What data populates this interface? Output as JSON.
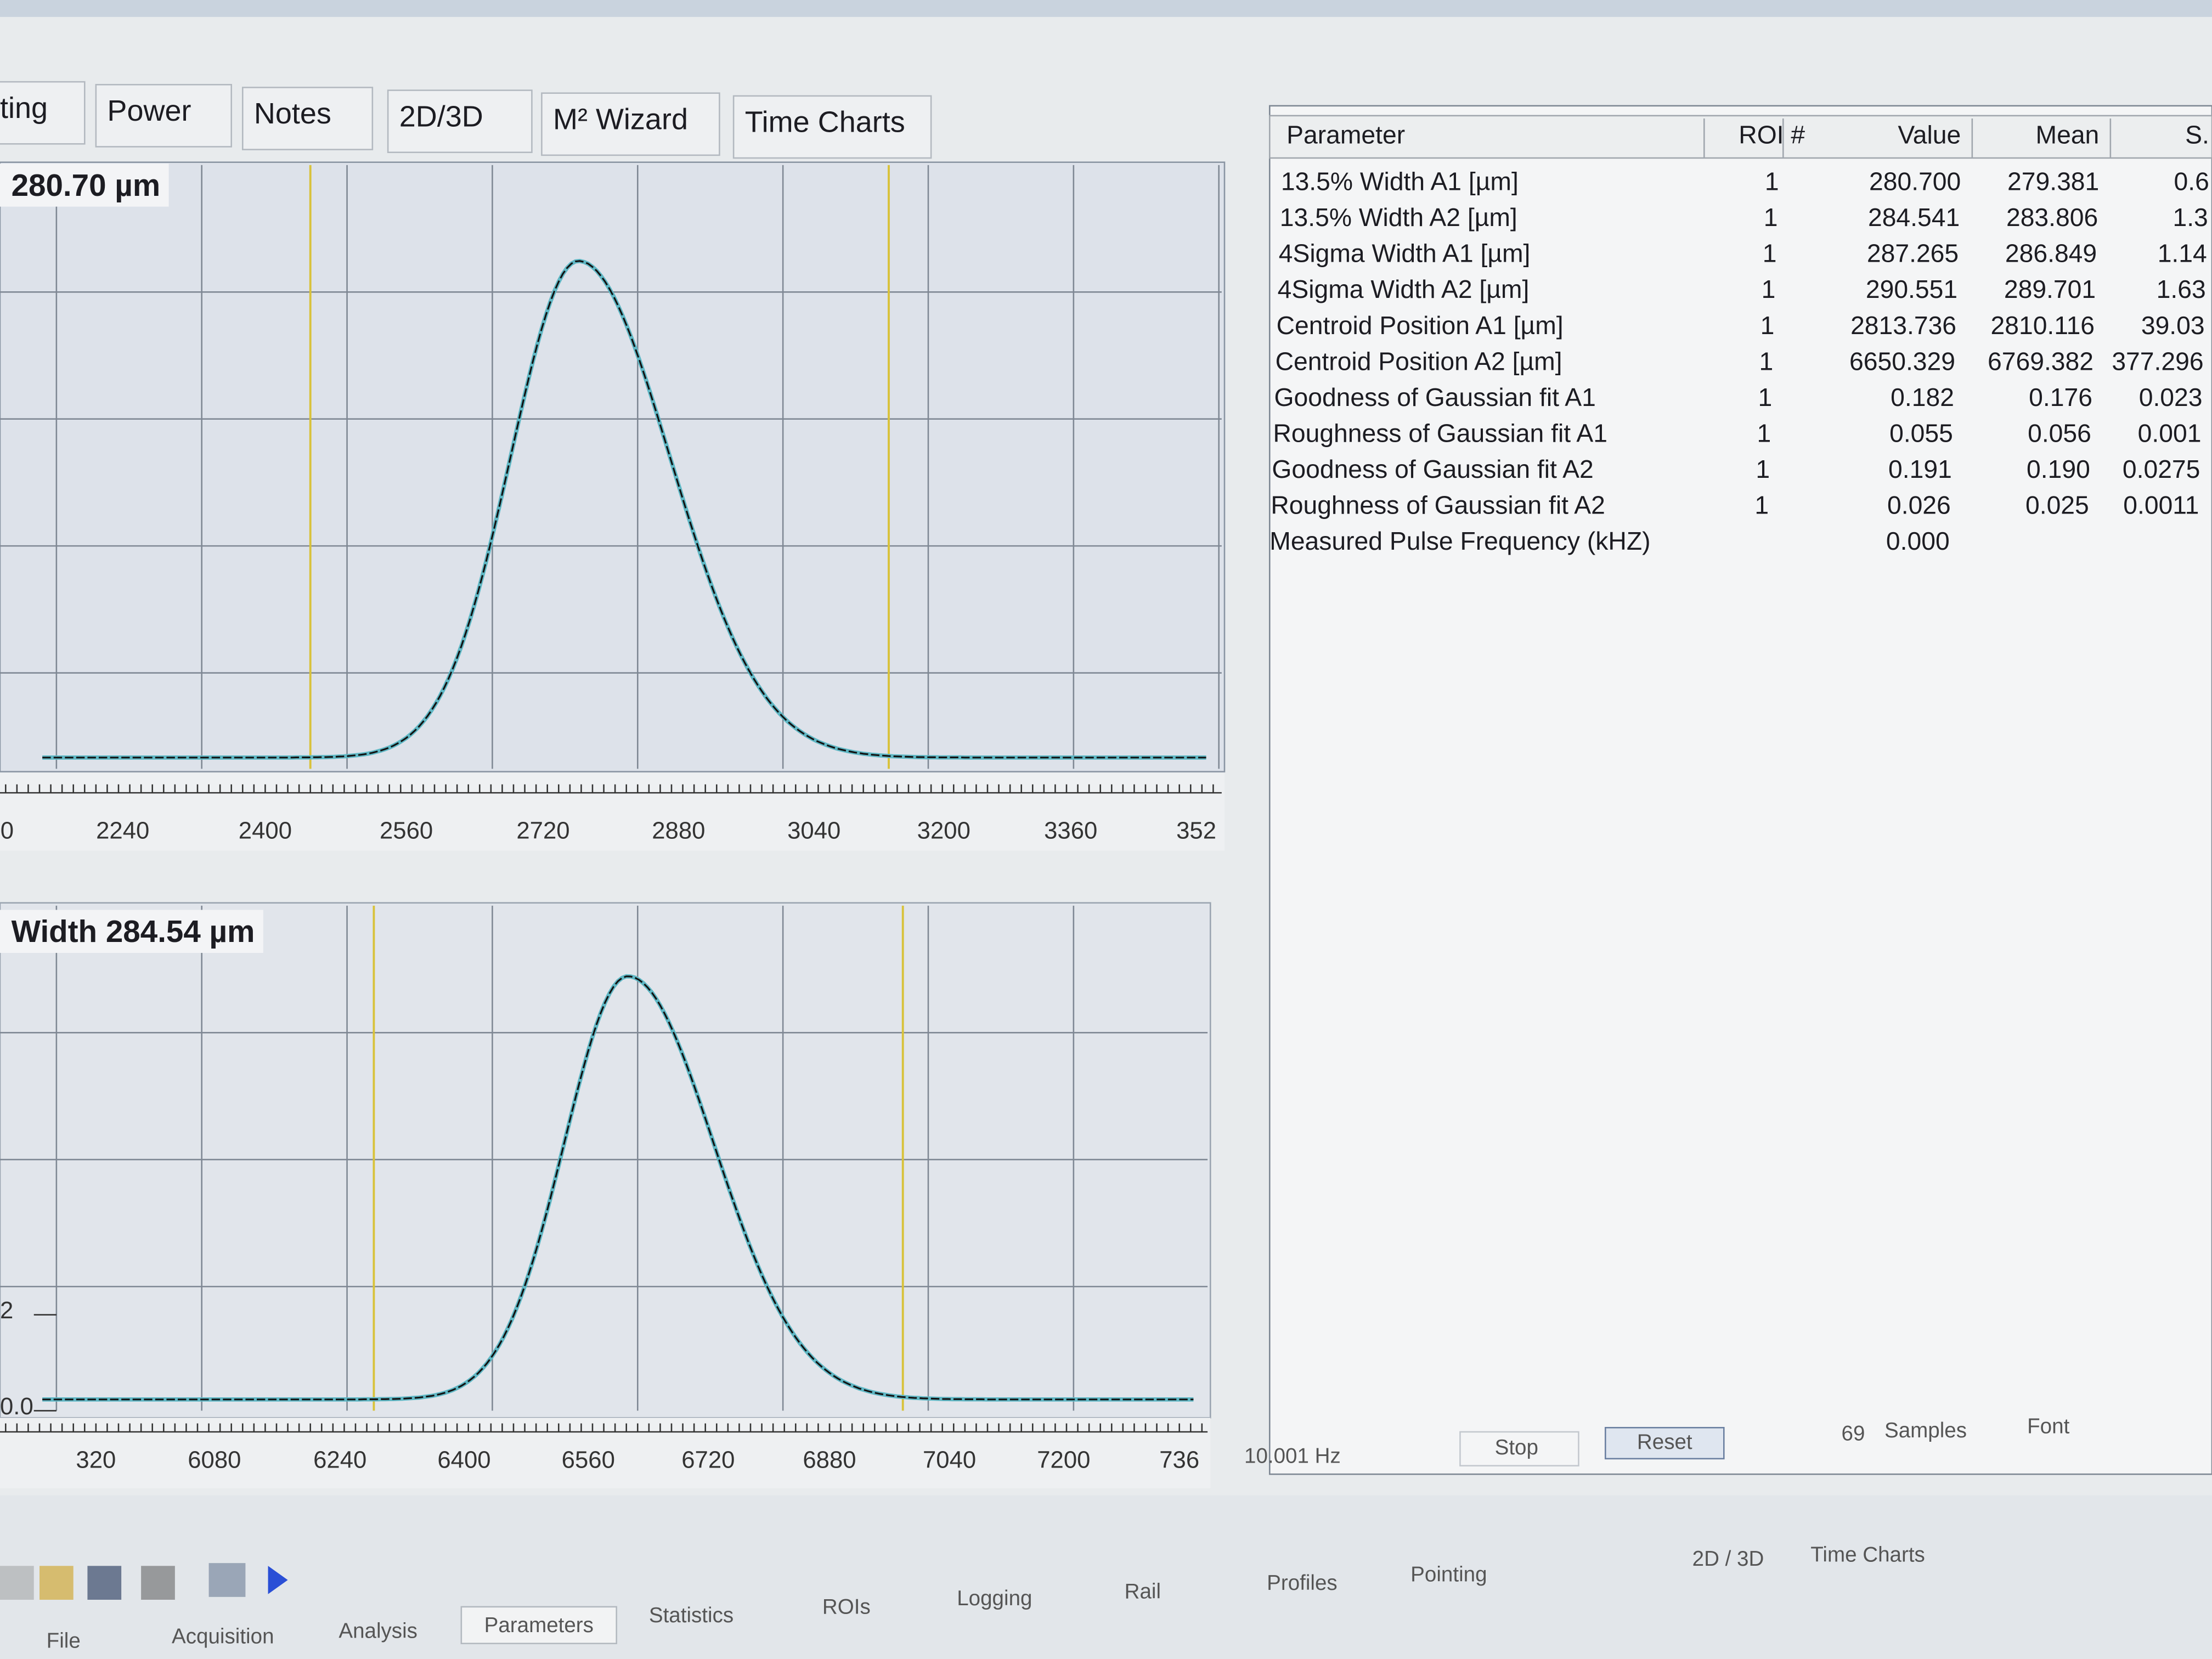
{
  "tabs": [
    "ting",
    "Power",
    "Notes",
    "2D/3D",
    "M² Wizard",
    "Time Charts"
  ],
  "plots": [
    {
      "title": "280.70 µm",
      "xticks": [
        "0",
        "2240",
        "2400",
        "2560",
        "2720",
        "2880",
        "3040",
        "3200",
        "3360",
        "352"
      ]
    },
    {
      "title": "Width 284.54 µm",
      "yticks": [
        "2",
        "0.0"
      ],
      "xticks": [
        "320",
        "6080",
        "6240",
        "6400",
        "6560",
        "6720",
        "6880",
        "7040",
        "7200",
        "736"
      ]
    }
  ],
  "table": {
    "header": [
      "Parameter",
      "ROI #",
      "Value",
      "Mean",
      "S."
    ],
    "rows": [
      {
        "parameter": "13.5% Width A1 [µm]",
        "roi": "1",
        "value": "280.700",
        "mean": "279.381",
        "sd": "0.6"
      },
      {
        "parameter": "13.5% Width A2 [µm]",
        "roi": "1",
        "value": "284.541",
        "mean": "283.806",
        "sd": "1.3"
      },
      {
        "parameter": "4Sigma Width A1 [µm]",
        "roi": "1",
        "value": "287.265",
        "mean": "286.849",
        "sd": "1.14"
      },
      {
        "parameter": "4Sigma Width A2 [µm]",
        "roi": "1",
        "value": "290.551",
        "mean": "289.701",
        "sd": "1.63"
      },
      {
        "parameter": "Centroid Position A1 [µm]",
        "roi": "1",
        "value": "2813.736",
        "mean": "2810.116",
        "sd": "39.03"
      },
      {
        "parameter": "Centroid Position A2 [µm]",
        "roi": "1",
        "value": "6650.329",
        "mean": "6769.382",
        "sd": "377.296"
      },
      {
        "parameter": "Goodness of Gaussian fit A1",
        "roi": "1",
        "value": "0.182",
        "mean": "0.176",
        "sd": "0.023"
      },
      {
        "parameter": "Roughness of Gaussian fit A1",
        "roi": "1",
        "value": "0.055",
        "mean": "0.056",
        "sd": "0.001"
      },
      {
        "parameter": "Goodness of Gaussian fit A2",
        "roi": "1",
        "value": "0.191",
        "mean": "0.190",
        "sd": "0.0275"
      },
      {
        "parameter": "Roughness of Gaussian fit A2",
        "roi": "1",
        "value": "0.026",
        "mean": "0.025",
        "sd": "0.0011"
      },
      {
        "parameter": "Measured Pulse Frequency (kHZ)",
        "value": "0.000"
      }
    ]
  },
  "status": {
    "rate": "10.001 Hz",
    "stop": "Stop",
    "reset": "Reset",
    "samples_count": "69",
    "samples": "Samples",
    "font": "Font"
  },
  "bottom_tabs": [
    "File",
    "Acquisition",
    "Analysis",
    "Parameters",
    "Statistics",
    "ROIs",
    "Logging",
    "Rail",
    "Profiles",
    "Pointing",
    "2D / 3D",
    "Time Charts"
  ]
}
